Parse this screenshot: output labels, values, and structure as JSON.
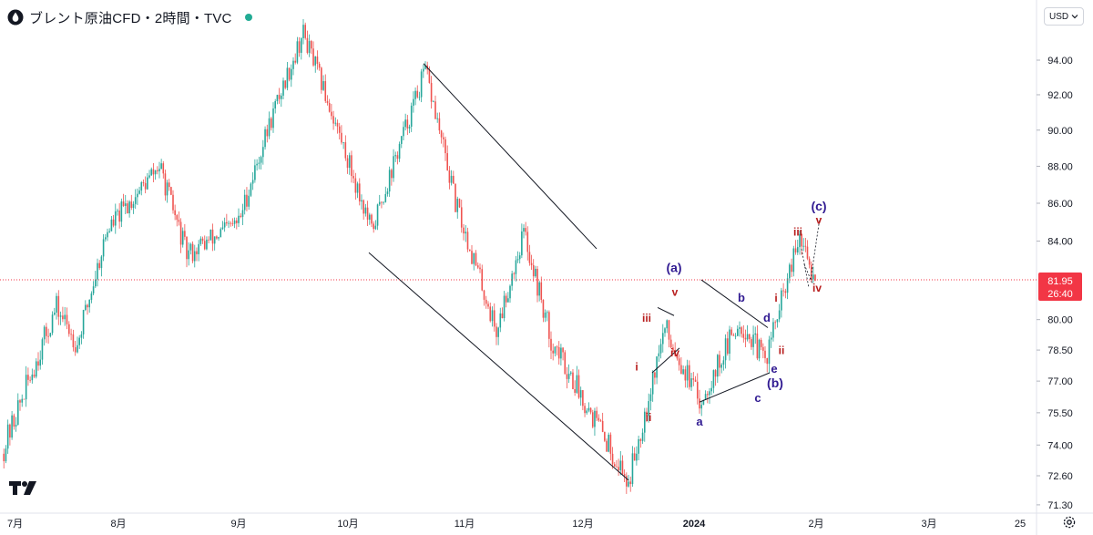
{
  "header": {
    "title": "ブレント原油CFD・2時間・TVC",
    "status_color": "#22ab94"
  },
  "currency_button": {
    "label": "USD"
  },
  "price_badge": {
    "price": "81.95",
    "countdown": "26:40",
    "color": "#f23645"
  },
  "icons": {
    "symbol": "oil-drop-icon",
    "logo": "tradingview-logo-icon",
    "settings": "gear-icon",
    "dropdown": "chevron-down-icon"
  },
  "colors": {
    "up": "#26a69a",
    "down": "#ef5350",
    "wave_minor": "#b71c1c",
    "wave_major": "#311b92",
    "lines": "#131722"
  },
  "chart_data": {
    "type": "candlestick",
    "y_axis": {
      "ticks": [
        "94.00",
        "92.00",
        "90.00",
        "88.00",
        "86.00",
        "84.00",
        "80.00",
        "78.50",
        "77.00",
        "75.50",
        "74.00",
        "72.60",
        "71.30"
      ],
      "scale": "log",
      "range": [
        71.0,
        96.5
      ]
    },
    "x_axis": {
      "ticks": [
        "7月",
        "8月",
        "9月",
        "10月",
        "11月",
        "12月",
        "2024",
        "2月",
        "3月",
        "25"
      ]
    },
    "last_price": 81.95,
    "price_path": [
      [
        "7月",
        73.6
      ],
      [
        "7月 mid",
        80.6
      ],
      [
        "late-Jul",
        78.8
      ],
      [
        "8月",
        84.6
      ],
      [
        "mid-Aug",
        88.0
      ],
      [
        "late-Aug",
        83.3
      ],
      [
        "9月",
        85.0
      ],
      [
        "mid-Sep",
        91.0
      ],
      [
        "late-Sep",
        95.6
      ],
      [
        "10月",
        84.5
      ],
      [
        "mid-Oct",
        93.4
      ],
      [
        "11月",
        86.0
      ],
      [
        "mid-Nov",
        79.4
      ],
      [
        "late-Nov",
        84.5
      ],
      [
        "12月",
        79.0
      ],
      [
        "mid-Dec",
        72.3
      ],
      [
        "late-Dec",
        79.6
      ],
      [
        "2024",
        76.0
      ],
      [
        "mid-Jan",
        79.9
      ],
      [
        "late-Jan",
        78.0
      ],
      [
        "end-Jan",
        84.1
      ],
      [
        "now",
        81.95
      ]
    ],
    "annotations": {
      "minor_waves": [
        "i",
        "ii",
        "iii",
        "iv",
        "v",
        "i",
        "ii",
        "iii",
        "iv",
        "v"
      ],
      "major_waves": [
        "(a)",
        "(b)",
        "(c)",
        "a",
        "b",
        "c",
        "d",
        "e"
      ]
    }
  }
}
